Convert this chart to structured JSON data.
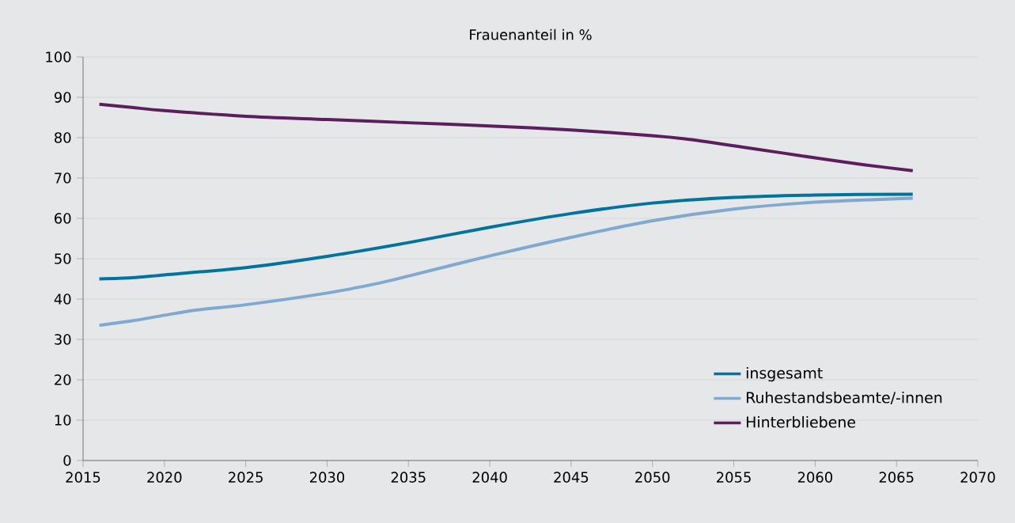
{
  "chart_data": {
    "type": "line",
    "title": "Frauenanteil in %",
    "xlim": [
      2015,
      2070
    ],
    "ylim": [
      0,
      100
    ],
    "xticks": [
      2015,
      2020,
      2025,
      2030,
      2035,
      2040,
      2045,
      2050,
      2055,
      2060,
      2065,
      2070
    ],
    "yticks": [
      0,
      10,
      20,
      30,
      40,
      50,
      60,
      70,
      80,
      90,
      100
    ],
    "grid": "y",
    "legend": "bottom right",
    "marker": "none",
    "line_style": "solid",
    "series": [
      {
        "name": "insgesamt",
        "color": "#00739e",
        "x": [
          2016,
          2018,
          2020,
          2025,
          2030,
          2035,
          2040,
          2045,
          2050,
          2055,
          2060,
          2066
        ],
        "values": [
          45,
          45.3,
          46,
          47.8,
          50.6,
          54,
          57.8,
          61.2,
          63.8,
          65.2,
          65.8,
          66
        ]
      },
      {
        "name": "Ruhestandsbeamte/-innen",
        "color": "#7fa9cf",
        "x": [
          2016,
          2018,
          2020,
          2022,
          2025,
          2030,
          2033,
          2035,
          2040,
          2045,
          2050,
          2055,
          2060,
          2066
        ],
        "values": [
          33.5,
          34.6,
          36,
          37.3,
          38.6,
          41.5,
          43.8,
          45.7,
          50.7,
          55.3,
          59.4,
          62.3,
          64,
          65
        ]
      },
      {
        "name": "Hinterbliebene",
        "color": "#5b1f5e",
        "x": [
          2016,
          2018,
          2020,
          2025,
          2030,
          2035,
          2040,
          2045,
          2050,
          2052,
          2055,
          2058,
          2060,
          2063,
          2066
        ],
        "values": [
          88.3,
          87.5,
          86.7,
          85.3,
          84.5,
          83.7,
          82.9,
          81.9,
          80.5,
          79.7,
          78,
          76.2,
          75,
          73.3,
          71.8
        ]
      }
    ]
  }
}
